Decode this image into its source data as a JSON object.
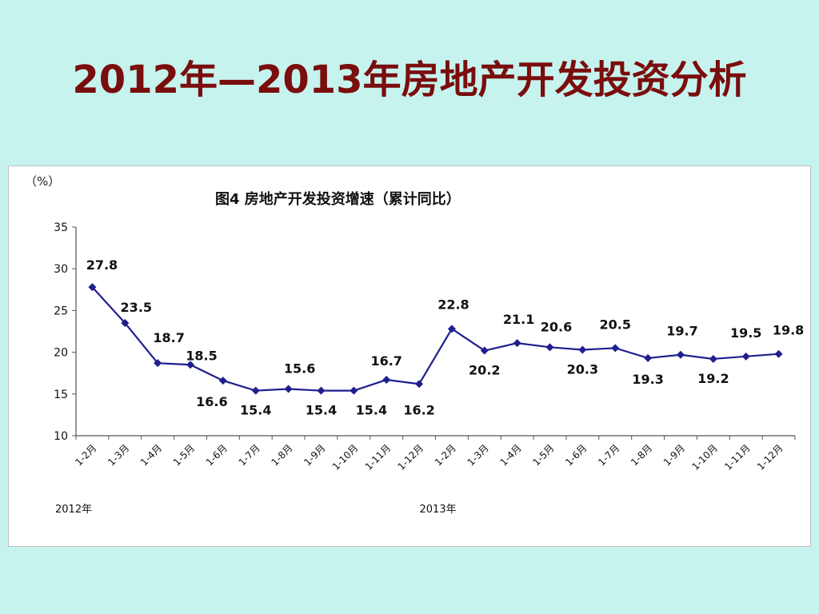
{
  "slide": {
    "title": "2012年—2013年房地产开发投资分析"
  },
  "colors": {
    "background": "#c6f3ee",
    "title": "#7a0d0d",
    "series": "#1f1f8f"
  },
  "chart_data": {
    "type": "line",
    "title": "图4  房地产开发投资增速（累计同比）",
    "unit": "（%）",
    "ylim": [
      10,
      35
    ],
    "yticks": [
      10,
      15,
      20,
      25,
      30,
      35
    ],
    "grid": false,
    "x": [
      "1-2月",
      "1-3月",
      "1-4月",
      "1-5月",
      "1-6月",
      "1-7月",
      "1-8月",
      "1-9月",
      "1-10月",
      "1-11月",
      "1-12月",
      "1-2月",
      "1-3月",
      "1-4月",
      "1-5月",
      "1-6月",
      "1-7月",
      "1-8月",
      "1-9月",
      "1-10月",
      "1-11月",
      "1-12月"
    ],
    "year_labels": [
      {
        "label": "2012年",
        "start_index": 0
      },
      {
        "label": "2013年",
        "start_index": 11
      }
    ],
    "series": [
      {
        "values": [
          27.8,
          23.5,
          18.7,
          18.5,
          16.6,
          15.4,
          15.6,
          15.4,
          15.4,
          16.7,
          16.2,
          22.8,
          20.2,
          21.1,
          20.6,
          20.3,
          20.5,
          19.3,
          19.7,
          19.2,
          19.5,
          19.8
        ],
        "data_labels": [
          "27.8",
          "23.5",
          "18.7",
          "18.5",
          "16.6",
          "15.4",
          "15.6",
          "15.4",
          "15.4",
          "16.7",
          "16.2",
          "22.8",
          "20.2",
          "21.1",
          "20.6",
          "20.3",
          "20.5",
          "19.3",
          "19.7",
          "19.2",
          "19.5",
          "19.8"
        ]
      }
    ]
  }
}
